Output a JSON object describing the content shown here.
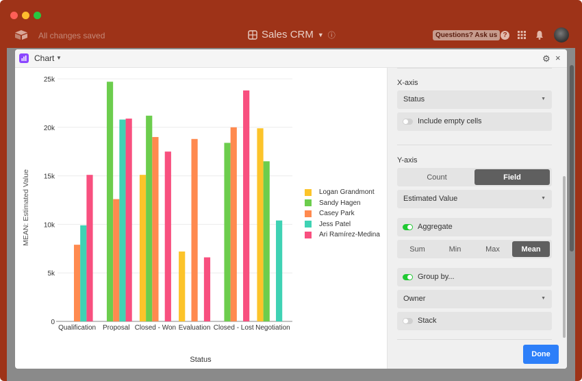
{
  "window": {
    "saved_status": "All changes saved",
    "base_title": "Sales CRM",
    "ask_button": "Questions? Ask us",
    "help_glyph": "?"
  },
  "dialog": {
    "title": "Chart",
    "settings_icon": "gear-icon",
    "close_icon": "close-icon",
    "close_glyph": "×",
    "gear_glyph": "⚙"
  },
  "panel": {
    "x_axis": {
      "label": "X-axis",
      "field": "Status",
      "include_empty_label": "Include empty cells",
      "include_empty": false
    },
    "y_axis": {
      "label": "Y-axis",
      "modes": [
        "Count",
        "Field"
      ],
      "active_mode": "Field",
      "field": "Estimated Value",
      "aggregate_label": "Aggregate",
      "aggregate": true,
      "functions": [
        "Sum",
        "Min",
        "Max",
        "Mean"
      ],
      "active_function": "Mean",
      "group_by_label": "Group by...",
      "group_by": true,
      "group_field": "Owner",
      "stack_label": "Stack",
      "stack": false
    },
    "done_label": "Done"
  },
  "colors": {
    "accent": "#2d7ff9",
    "titlebar": "#9e3318",
    "toggle_on": "#20c933"
  },
  "chart_data": {
    "type": "bar",
    "xlabel": "Status",
    "ylabel": "MEAN: Estimated Value",
    "ylim": [
      0,
      25000
    ],
    "yticks": [
      "0",
      "5k",
      "10k",
      "15k",
      "20k",
      "25k"
    ],
    "categories": [
      "Qualification",
      "Proposal",
      "Closed - Won",
      "Evaluation",
      "Closed - Lost",
      "Negotiation"
    ],
    "series": [
      {
        "name": "Logan Grandmont",
        "color": "#fcc42a",
        "values": [
          null,
          null,
          15100,
          7200,
          null,
          19900
        ]
      },
      {
        "name": "Sandy Hagen",
        "color": "#6ccd4d",
        "values": [
          null,
          24700,
          21200,
          null,
          18400,
          16500
        ]
      },
      {
        "name": "Casey Park",
        "color": "#ff8a4f",
        "values": [
          7900,
          12600,
          19000,
          18800,
          20000,
          null
        ]
      },
      {
        "name": "Jess Patel",
        "color": "#3fd2b4",
        "values": [
          9900,
          20800,
          null,
          null,
          null,
          10400
        ]
      },
      {
        "name": "Ari Ramírez-Medina",
        "color": "#f8507f",
        "values": [
          15100,
          20900,
          17500,
          6600,
          23800,
          null
        ]
      }
    ],
    "grid": true,
    "legend": "right"
  }
}
